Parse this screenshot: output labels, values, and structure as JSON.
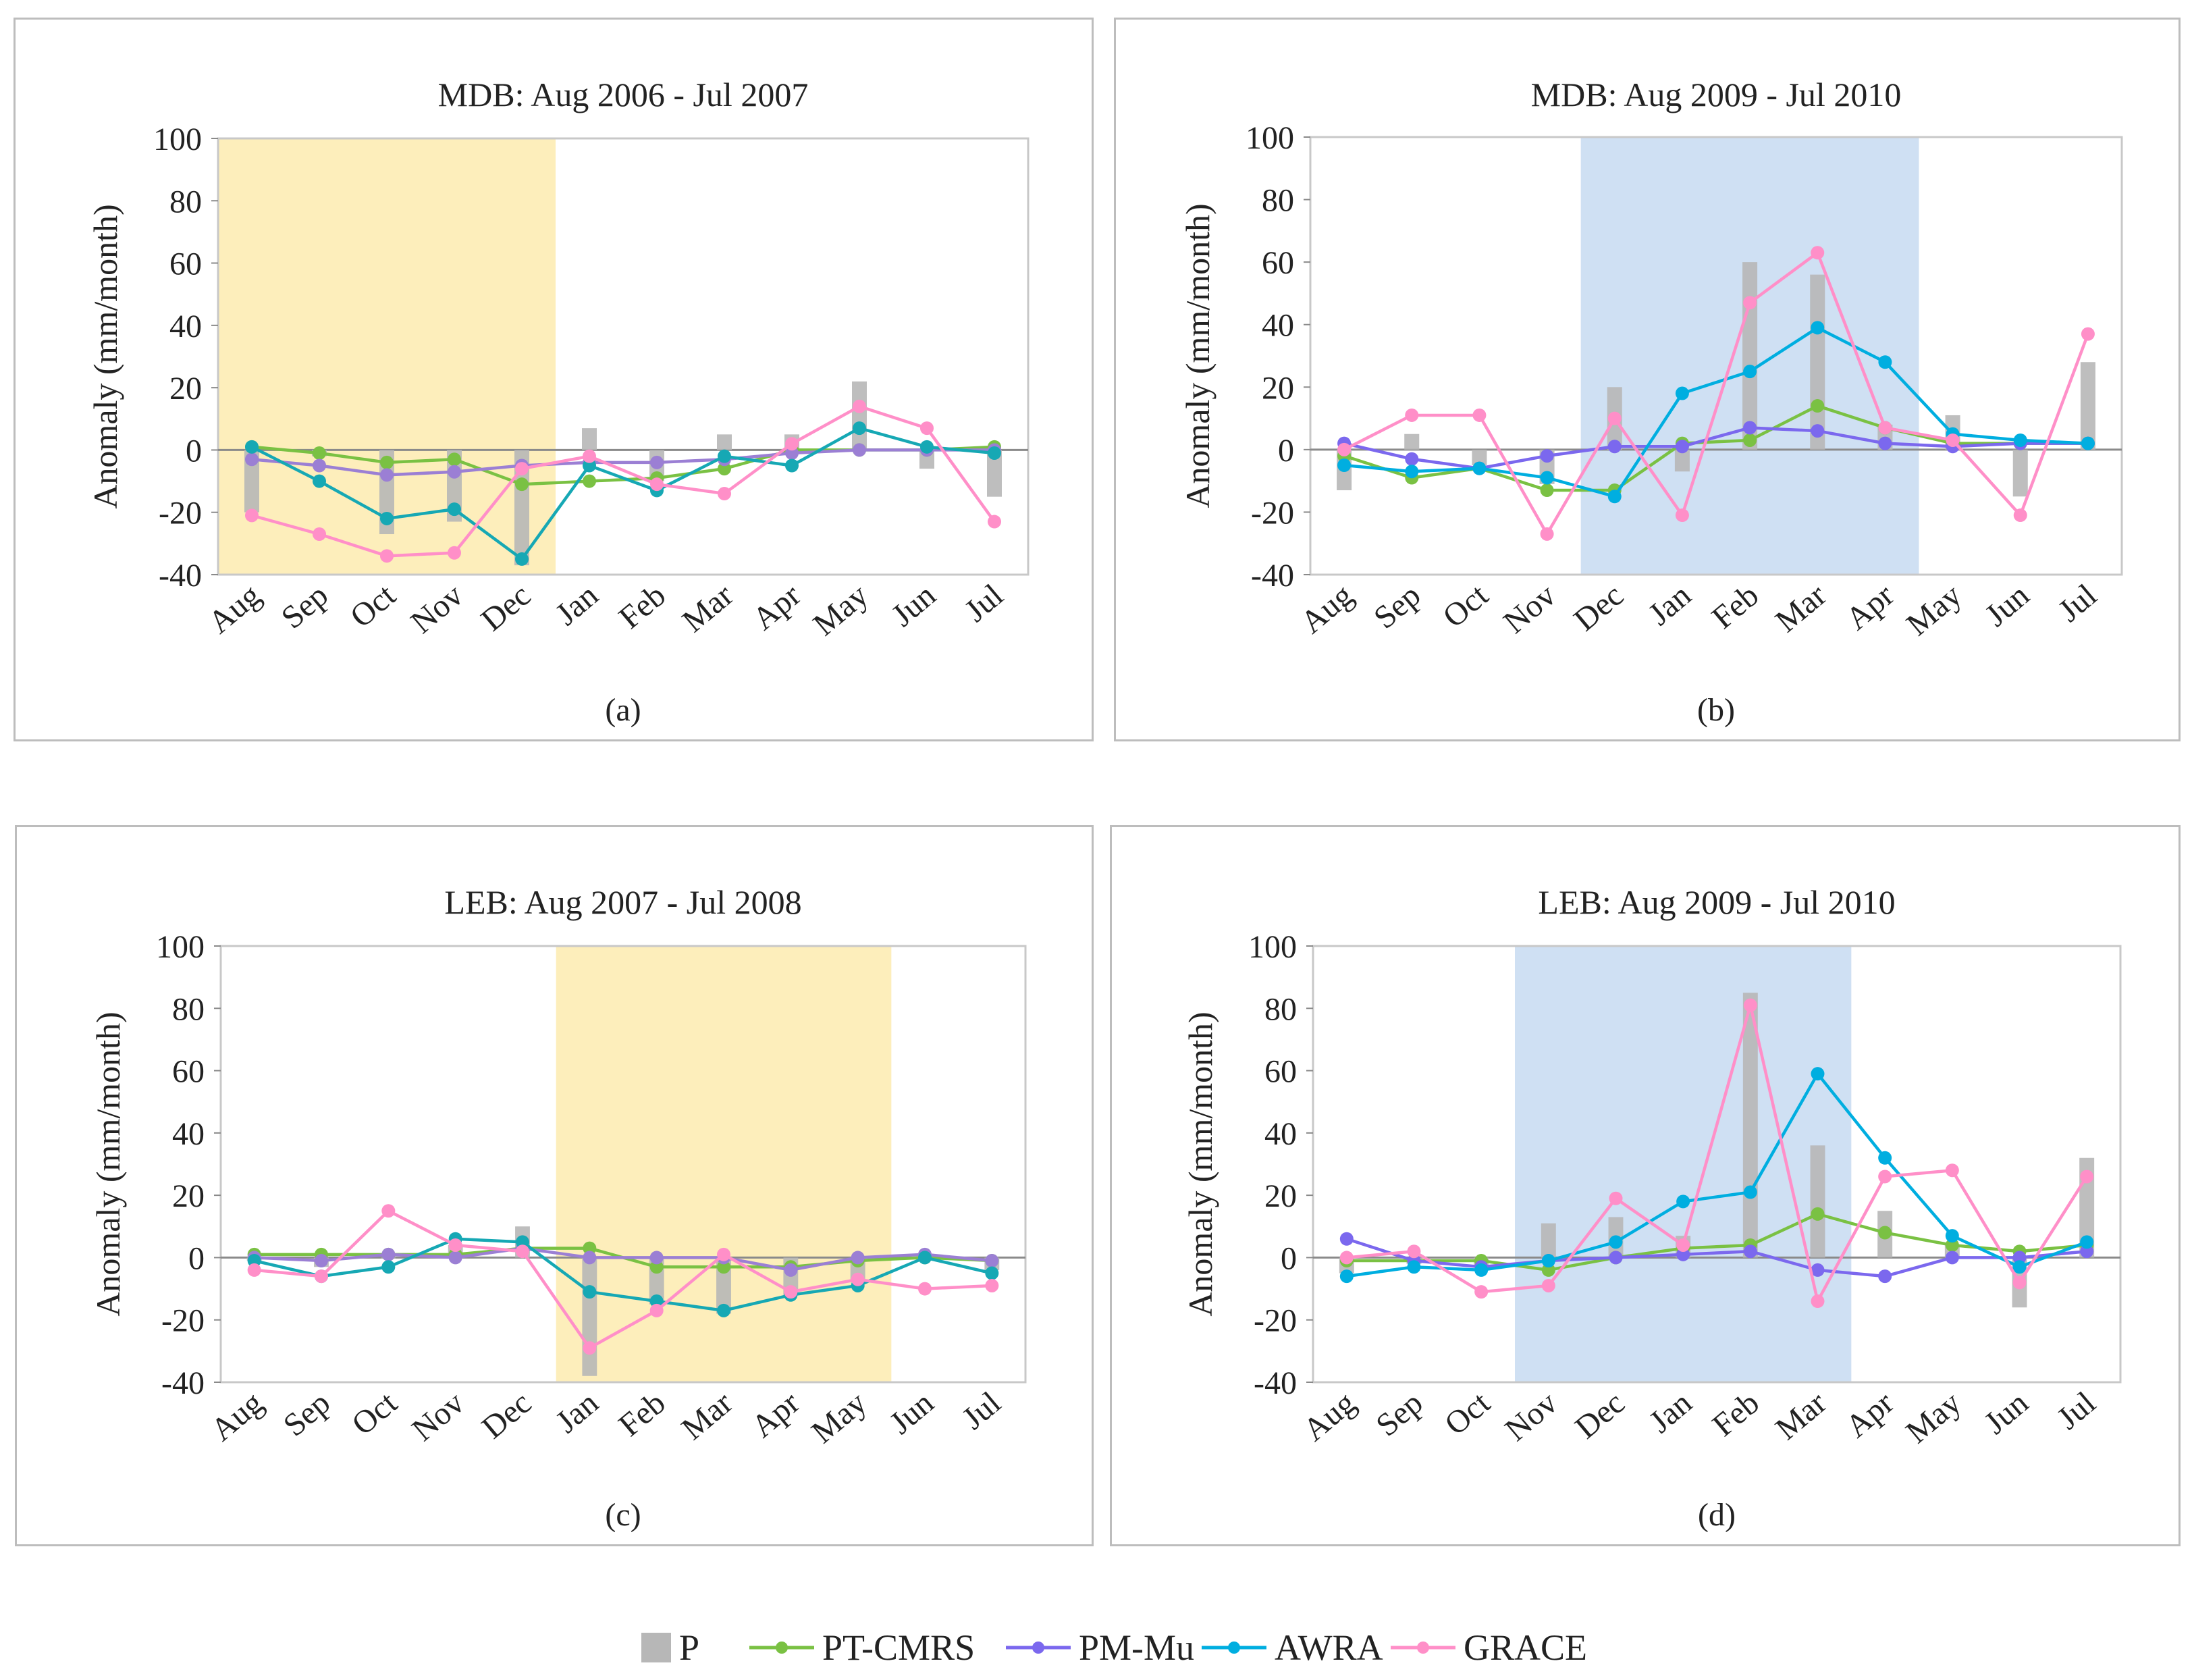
{
  "colors": {
    "P": "#b7b7b7",
    "PT-CMRS": "#7ac143",
    "PM-Mu": "#7b68ee",
    "AWRA": "#00aee0",
    "GRACE": "#ff8fc8",
    "dry_shade": "#fdeebb",
    "wet_shade": "#cfe0f3",
    "PM-Mu-a": "#9b7fd4",
    "AWRA-a": "#16a8b4"
  },
  "legend": {
    "items": [
      {
        "key": "P",
        "label": "P",
        "kind": "bar"
      },
      {
        "key": "PT-CMRS",
        "label": "PT-CMRS",
        "kind": "line"
      },
      {
        "key": "PM-Mu",
        "label": "PM-Mu",
        "kind": "line"
      },
      {
        "key": "AWRA",
        "label": "AWRA",
        "kind": "line"
      },
      {
        "key": "GRACE",
        "label": "GRACE",
        "kind": "line"
      }
    ]
  },
  "chart_data": [
    {
      "id": "a",
      "type": "line",
      "title": "MDB: Aug 2006 - Jul 2007",
      "caption": "(a)",
      "ylabel": "Anomaly (mm/month)",
      "xlabel": "",
      "ylim": [
        -40,
        100
      ],
      "yticks": [
        -40,
        -20,
        0,
        20,
        40,
        60,
        80,
        100
      ],
      "categories": [
        "Aug",
        "Sep",
        "Oct",
        "Nov",
        "Dec",
        "Jan",
        "Feb",
        "Mar",
        "Apr",
        "May",
        "Jun",
        "Jul"
      ],
      "shade": {
        "from": 0,
        "to": 5,
        "color": "dry_shade"
      },
      "bars": {
        "name": "P",
        "values": [
          -20,
          -2,
          -27,
          -23,
          -37,
          7,
          -10,
          5,
          5,
          22,
          -6,
          -15
        ]
      },
      "series": [
        {
          "name": "PT-CMRS",
          "color": "PT-CMRS",
          "values": [
            1,
            -1,
            -4,
            -3,
            -11,
            -10,
            -9,
            -6,
            0,
            0,
            0,
            1
          ]
        },
        {
          "name": "PM-Mu",
          "color": "PM-Mu-a",
          "values": [
            -3,
            -5,
            -8,
            -7,
            -5,
            -4,
            -4,
            -3,
            -1,
            0,
            0,
            0
          ]
        },
        {
          "name": "AWRA",
          "color": "AWRA-a",
          "values": [
            1,
            -10,
            -22,
            -19,
            -35,
            -5,
            -13,
            -2,
            -5,
            7,
            1,
            -1
          ]
        },
        {
          "name": "GRACE",
          "color": "GRACE",
          "values": [
            -21,
            -27,
            -34,
            -33,
            -6,
            -2,
            -11,
            -14,
            2,
            14,
            7,
            -23
          ]
        }
      ]
    },
    {
      "id": "b",
      "type": "line",
      "title": "MDB: Aug 2009 - Jul 2010",
      "caption": "(b)",
      "ylabel": "Anomaly (mm/month)",
      "xlabel": "",
      "ylim": [
        -40,
        100
      ],
      "yticks": [
        -40,
        -20,
        0,
        20,
        40,
        60,
        80,
        100
      ],
      "categories": [
        "Aug",
        "Sep",
        "Oct",
        "Nov",
        "Dec",
        "Jan",
        "Feb",
        "Mar",
        "Apr",
        "May",
        "Jun",
        "Jul"
      ],
      "shade": {
        "from": 4,
        "to": 9,
        "color": "wet_shade"
      },
      "bars": {
        "name": "P",
        "values": [
          -13,
          5,
          -5,
          -11,
          20,
          -7,
          60,
          56,
          8,
          11,
          -15,
          28
        ]
      },
      "series": [
        {
          "name": "PT-CMRS",
          "color": "PT-CMRS",
          "values": [
            -2,
            -9,
            -6,
            -13,
            -13,
            2,
            3,
            14,
            7,
            2,
            2,
            2
          ]
        },
        {
          "name": "PM-Mu",
          "color": "PM-Mu",
          "values": [
            2,
            -3,
            -6,
            -2,
            1,
            1,
            7,
            6,
            2,
            1,
            2,
            2
          ]
        },
        {
          "name": "AWRA",
          "color": "AWRA",
          "values": [
            -5,
            -7,
            -6,
            -9,
            -15,
            18,
            25,
            39,
            28,
            5,
            3,
            2
          ]
        },
        {
          "name": "GRACE",
          "color": "GRACE",
          "values": [
            0,
            11,
            11,
            -27,
            10,
            -21,
            47,
            63,
            7,
            3,
            -21,
            37
          ]
        }
      ]
    },
    {
      "id": "c",
      "type": "line",
      "title": "LEB: Aug 2007 - Jul 2008",
      "caption": "(c)",
      "ylabel": "Anomaly (mm/month)",
      "xlabel": "",
      "ylim": [
        -40,
        100
      ],
      "yticks": [
        -40,
        -20,
        0,
        20,
        40,
        60,
        80,
        100
      ],
      "categories": [
        "Aug",
        "Sep",
        "Oct",
        "Nov",
        "Dec",
        "Jan",
        "Feb",
        "Mar",
        "Apr",
        "May",
        "Jun",
        "Jul"
      ],
      "shade": {
        "from": 5,
        "to": 10,
        "color": "dry_shade"
      },
      "bars": {
        "name": "P",
        "values": [
          -1,
          -3,
          0,
          4,
          10,
          -38,
          -15,
          -18,
          -12,
          -8,
          0,
          -4
        ]
      },
      "series": [
        {
          "name": "PT-CMRS",
          "color": "PT-CMRS",
          "values": [
            1,
            1,
            1,
            1,
            3,
            3,
            -3,
            -3,
            -3,
            -1,
            0,
            -1
          ]
        },
        {
          "name": "PM-Mu",
          "color": "PM-Mu-a",
          "values": [
            0,
            -1,
            1,
            0,
            3,
            0,
            0,
            0,
            -4,
            0,
            1,
            -1
          ]
        },
        {
          "name": "AWRA",
          "color": "AWRA-a",
          "values": [
            -1,
            -6,
            -3,
            6,
            5,
            -11,
            -14,
            -17,
            -12,
            -9,
            0,
            -5
          ]
        },
        {
          "name": "GRACE",
          "color": "GRACE",
          "values": [
            -4,
            -6,
            15,
            4,
            2,
            -29,
            -17,
            1,
            -11,
            -7,
            -10,
            -9
          ]
        }
      ]
    },
    {
      "id": "d",
      "type": "line",
      "title": "LEB: Aug 2009 - Jul 2010",
      "caption": "(d)",
      "ylabel": "Anomaly (mm/month)",
      "xlabel": "",
      "ylim": [
        -40,
        100
      ],
      "yticks": [
        -40,
        -20,
        0,
        20,
        40,
        60,
        80,
        100
      ],
      "categories": [
        "Aug",
        "Sep",
        "Oct",
        "Nov",
        "Dec",
        "Jan",
        "Feb",
        "Mar",
        "Apr",
        "May",
        "Jun",
        "Jul"
      ],
      "shade": {
        "from": 3,
        "to": 8,
        "color": "wet_shade"
      },
      "bars": {
        "name": "P",
        "values": [
          -5,
          -2,
          -3,
          11,
          13,
          7,
          85,
          36,
          15,
          4,
          -16,
          32
        ]
      },
      "series": [
        {
          "name": "PT-CMRS",
          "color": "PT-CMRS",
          "values": [
            -1,
            -1,
            -1,
            -4,
            0,
            3,
            4,
            14,
            8,
            4,
            2,
            4
          ]
        },
        {
          "name": "PM-Mu",
          "color": "PM-Mu",
          "values": [
            6,
            -1,
            -3,
            -1,
            0,
            1,
            2,
            -4,
            -6,
            0,
            0,
            2
          ]
        },
        {
          "name": "AWRA",
          "color": "AWRA",
          "values": [
            -6,
            -3,
            -4,
            -1,
            5,
            18,
            21,
            59,
            32,
            7,
            -3,
            5
          ]
        },
        {
          "name": "GRACE",
          "color": "GRACE",
          "values": [
            0,
            2,
            -11,
            -9,
            19,
            4,
            81,
            -14,
            26,
            28,
            -8,
            26
          ]
        }
      ]
    }
  ]
}
